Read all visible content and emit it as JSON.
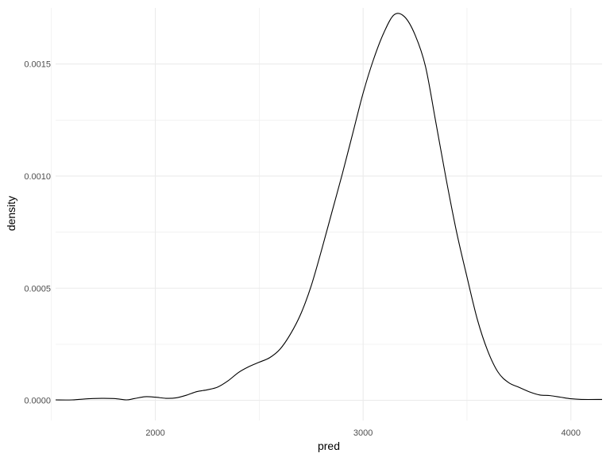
{
  "chart_data": {
    "type": "line",
    "title": "",
    "xlabel": "pred",
    "ylabel": "density",
    "xlim": [
      1520,
      4150
    ],
    "ylim": [
      -9e-05,
      0.00175
    ],
    "x_ticks": [
      {
        "value": 2000,
        "label": "2000"
      },
      {
        "value": 3000,
        "label": "3000"
      },
      {
        "value": 4000,
        "label": "4000"
      }
    ],
    "y_ticks": [
      {
        "value": 0.0,
        "label": "0.0000"
      },
      {
        "value": 0.0005,
        "label": "0.0005"
      },
      {
        "value": 0.001,
        "label": "0.0010"
      },
      {
        "value": 0.0015,
        "label": "0.0015"
      }
    ],
    "x_minor": [
      1500,
      2500,
      3500
    ],
    "y_minor": [
      0.00025,
      0.00075,
      0.00125
    ],
    "grid": true,
    "line_color": "#000000",
    "grid_color": "#ebebeb",
    "series": [
      {
        "x": [
          1520,
          1600,
          1700,
          1800,
          1860,
          1900,
          1950,
          2000,
          2050,
          2100,
          2150,
          2200,
          2250,
          2300,
          2350,
          2400,
          2450,
          2500,
          2550,
          2600,
          2650,
          2700,
          2750,
          2800,
          2850,
          2900,
          2950,
          3000,
          3050,
          3100,
          3150,
          3200,
          3250,
          3300,
          3350,
          3400,
          3450,
          3500,
          3550,
          3600,
          3650,
          3700,
          3750,
          3800,
          3850,
          3900,
          3950,
          4000,
          4050,
          4150
        ],
        "y": [
          2e-06,
          2e-06,
          8e-06,
          8e-06,
          2e-06,
          8e-06,
          1.6e-05,
          1.4e-05,
          9e-06,
          1.1e-05,
          2.3e-05,
          3.9e-05,
          4.7e-05,
          5.9e-05,
          8.7e-05,
          0.000124,
          0.00015,
          0.00017,
          0.00019,
          0.000228,
          0.000295,
          0.000385,
          0.00051,
          0.00067,
          0.00084,
          0.00101,
          0.00119,
          0.00137,
          0.00152,
          0.00164,
          0.00172,
          0.00171,
          0.00163,
          0.00149,
          0.00124,
          0.000985,
          0.00075,
          0.00055,
          0.00036,
          0.00022,
          0.000125,
          7.9e-05,
          5.8e-05,
          3.8e-05,
          2.4e-05,
          2.1e-05,
          1.4e-05,
          7e-06,
          4e-06,
          4e-06
        ]
      }
    ]
  }
}
